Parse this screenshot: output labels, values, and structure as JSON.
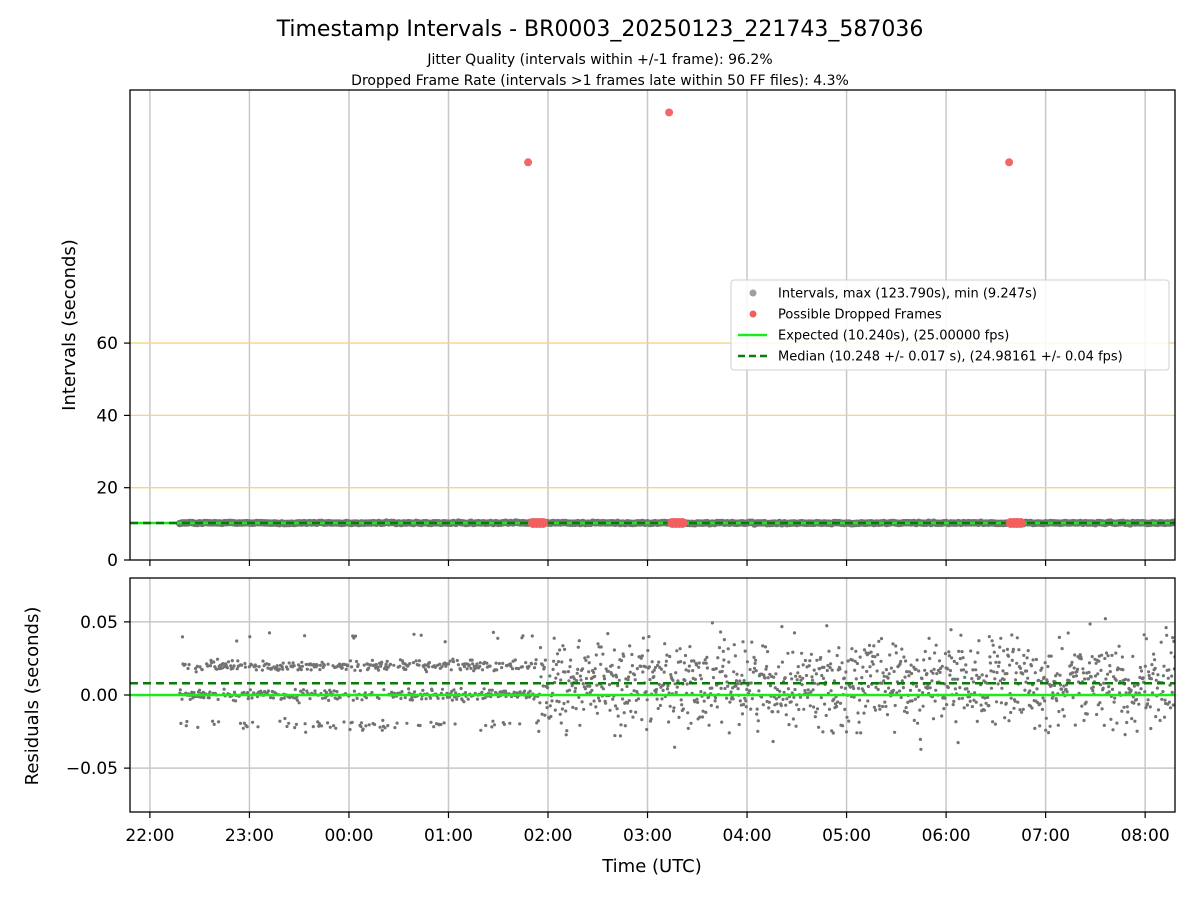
{
  "chart_data": [
    {
      "panel": "intervals",
      "type": "scatter",
      "title": "Timestamp Intervals - BR0003_20250123_221743_587036",
      "subtitle_lines": [
        "Jitter Quality (intervals within +/-1 frame): 96.2%",
        "Dropped Frame Rate (intervals >1 frames late within 50 FF files): 4.3%"
      ],
      "ylabel": "Intervals (seconds)",
      "xlim": [
        "21:48",
        "08:18"
      ],
      "ylim": [
        0,
        130
      ],
      "yticks": [
        0,
        20,
        40,
        60
      ],
      "highlight_lines": [
        20,
        40,
        60
      ],
      "highlight_color": "#ffd27a",
      "grid": "vertical",
      "legend_position": "right",
      "legend": [
        {
          "label": "Intervals, max (123.790s), min (9.247s)",
          "marker": "dot",
          "color": "#9e9e9e"
        },
        {
          "label": "Possible Dropped Frames",
          "marker": "dot",
          "color": "#f25f5f"
        },
        {
          "label": "Expected (10.240s), (25.00000 fps)",
          "marker": "solid",
          "color": "#1aeb1a"
        },
        {
          "label": "Median (10.248 +/- 0.017 s), (24.98161 +/- 0.04 fps)",
          "marker": "dashed",
          "color": "#0a7a0a"
        }
      ],
      "series": [
        {
          "name": "Intervals, max (123.790s), min (9.247s)",
          "x_range": [
            "22:18",
            "08:18"
          ],
          "y": 10.24,
          "color": "#737373"
        },
        {
          "name": "Possible Dropped Frames",
          "color": "#f25f5f",
          "points": [
            {
              "x": "01:48",
              "y": 110
            },
            {
              "x": "03:13",
              "y": 123.79
            },
            {
              "x": "06:38",
              "y": 110
            },
            {
              "x": "01:51",
              "y": 10.24
            },
            {
              "x": "01:53",
              "y": 10.24
            },
            {
              "x": "01:55",
              "y": 10.24
            },
            {
              "x": "01:57",
              "y": 10.24
            },
            {
              "x": "03:15",
              "y": 10.24
            },
            {
              "x": "03:17",
              "y": 10.24
            },
            {
              "x": "03:19",
              "y": 10.24
            },
            {
              "x": "03:21",
              "y": 10.24
            },
            {
              "x": "06:39",
              "y": 10.24
            },
            {
              "x": "06:41",
              "y": 10.24
            },
            {
              "x": "06:43",
              "y": 10.24
            },
            {
              "x": "06:45",
              "y": 10.24
            }
          ]
        },
        {
          "name": "Expected (10.240s), (25.00000 fps)",
          "y": 10.24,
          "color": "#1aeb1a",
          "style": "solid"
        },
        {
          "name": "Median (10.248 +/- 0.017 s), (24.98161 +/- 0.04 fps)",
          "y": 10.248,
          "color": "#0a7a0a",
          "style": "dashed"
        }
      ]
    },
    {
      "panel": "residuals",
      "type": "scatter",
      "ylabel": "Residuals (seconds)",
      "xlabel": "Time (UTC)",
      "xticks": [
        "22:00",
        "23:00",
        "00:00",
        "01:00",
        "02:00",
        "03:00",
        "04:00",
        "05:00",
        "06:00",
        "07:00",
        "08:00"
      ],
      "yticks": [
        0.05,
        0.0,
        -0.05
      ],
      "ytick_labels": [
        "0.05",
        "0.00",
        "−0.05"
      ],
      "ylim": [
        -0.08,
        0.08
      ],
      "grid": "both",
      "series": [
        {
          "name": "residuals",
          "x_range": [
            "22:18",
            "08:18"
          ],
          "color": "#737373",
          "bands_before_01_54": [
            0.0,
            0.02,
            -0.02,
            0.04
          ],
          "spread_after_01_54": [
            -0.04,
            0.058
          ]
        },
        {
          "name": "expected",
          "y": 0.0,
          "color": "#1aeb1a",
          "style": "solid"
        },
        {
          "name": "median",
          "y": 0.008,
          "color": "#0a7a0a",
          "style": "dashed"
        }
      ]
    }
  ]
}
